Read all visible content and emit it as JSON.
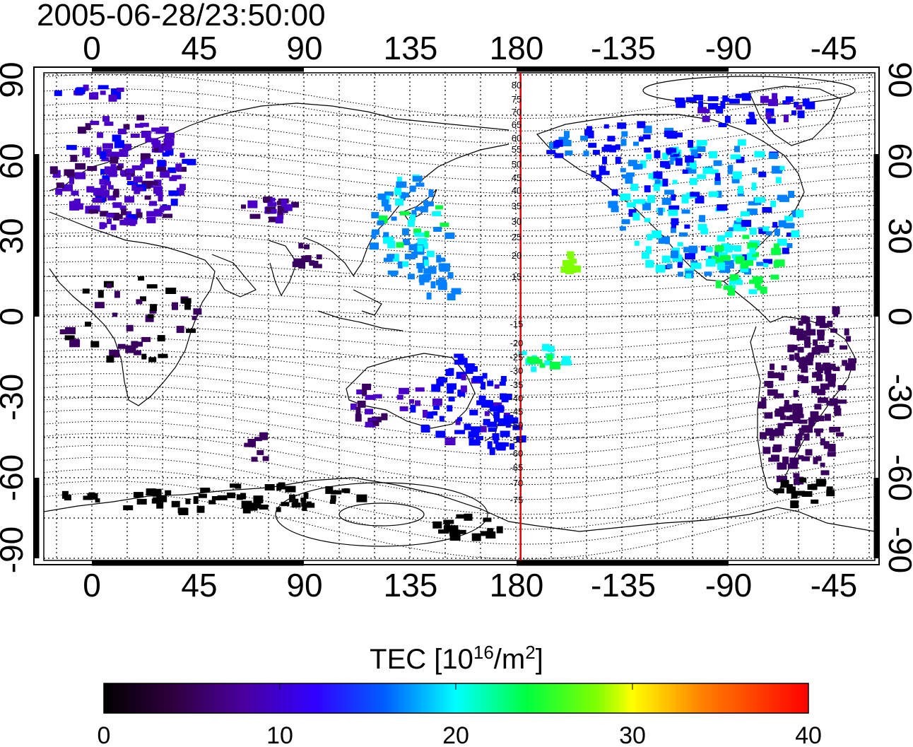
{
  "timestamp": "2005-06-28/23:50:00",
  "map": {
    "lon_ticks_top": [
      "0",
      "45",
      "90",
      "135",
      "180",
      "-135",
      "-90",
      "-45"
    ],
    "lon_ticks_bottom": [
      "0",
      "45",
      "90",
      "135",
      "180",
      "-135",
      "-90",
      "-45"
    ],
    "lat_ticks_left": [
      "90",
      "60",
      "30",
      "0",
      "-30",
      "-60",
      "-90"
    ],
    "lat_ticks_right": [
      "90",
      "60",
      "30",
      "0",
      "-30",
      "-60",
      "-90"
    ],
    "meridian_marker_lon": 182,
    "meridian_marker_color": "#e00000",
    "magnetic_latitude_labels_north": [
      "80",
      "75",
      "70",
      "65",
      "60",
      "55",
      "50",
      "45",
      "40",
      "35",
      "30",
      "25",
      "20",
      "15"
    ],
    "magnetic_latitude_labels_south": [
      "-15",
      "-20",
      "-25",
      "-30",
      "-35",
      "-40",
      "-45",
      "-50",
      "-55",
      "-60",
      "-65",
      "-70",
      "-75"
    ]
  },
  "colorbar": {
    "title_prefix": "TEC  [10",
    "title_sup1": "16",
    "title_mid": "/m",
    "title_sup2": "2",
    "title_suffix": "]",
    "ticks": [
      "0",
      "10",
      "20",
      "30",
      "40"
    ],
    "range": [
      0,
      40
    ],
    "colormap": [
      "#000000",
      "#3a0060",
      "#4b00c8",
      "#0000ff",
      "#0080ff",
      "#00ffff",
      "#00ff40",
      "#80ff00",
      "#ffff00",
      "#ff8000",
      "#ff0000"
    ]
  },
  "colors": {
    "frame": "#000000",
    "grid": "#000000",
    "coast": "#000000"
  }
}
